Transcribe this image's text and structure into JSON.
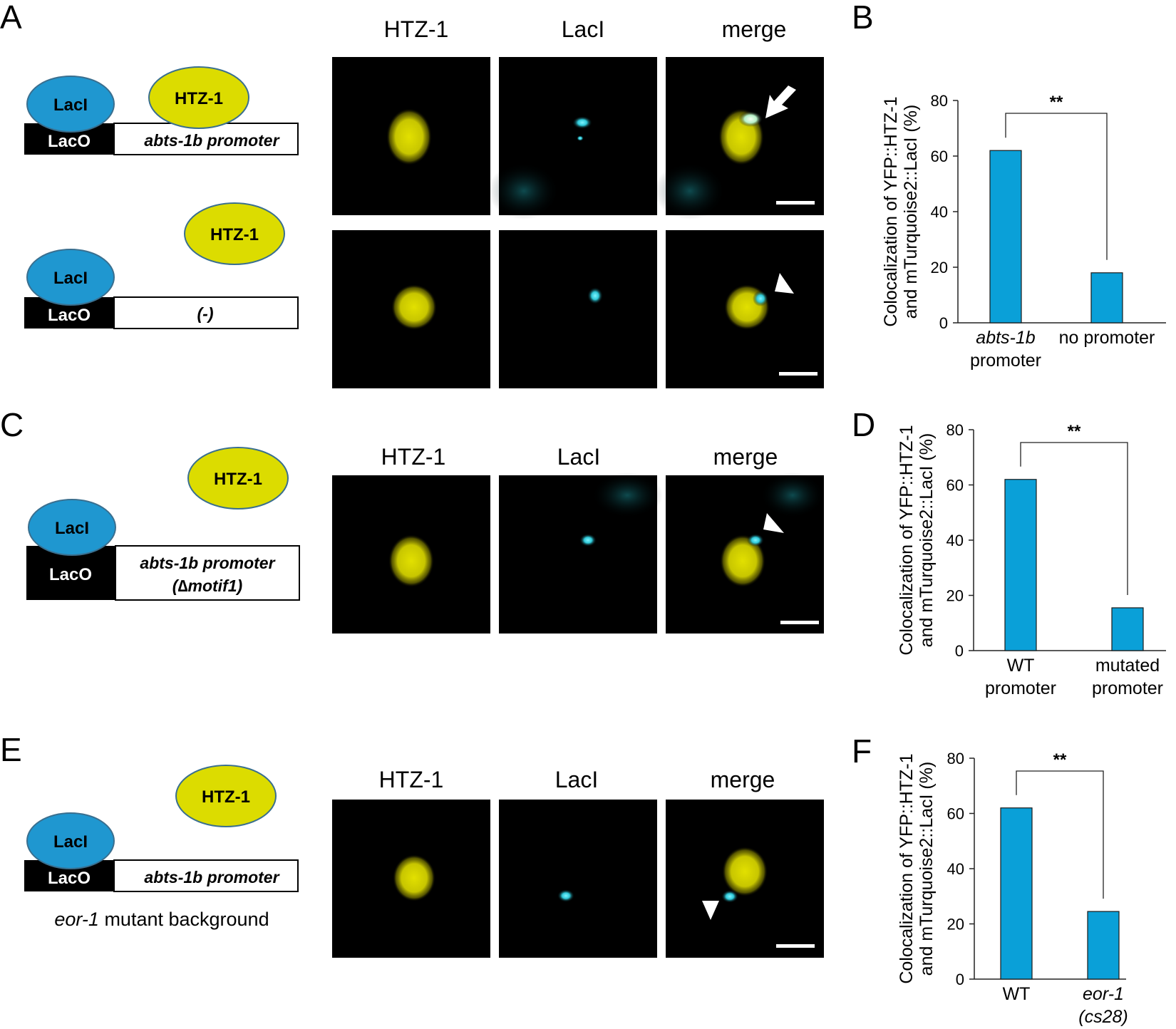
{
  "panel_letters": [
    "A",
    "B",
    "C",
    "D",
    "E",
    "F"
  ],
  "colors": {
    "laci_fill": "#1f97d0",
    "htz_fill": "#dcdc00",
    "ellipse_stroke": "#3a6f8f",
    "laco_fill": "#000000",
    "bar_fill": "#0aa0d8",
    "yfp_signal": "#d6d400",
    "turquoise_signal": "#2ec8d8",
    "micrograph_bg": "#000000"
  },
  "diagram": {
    "laci_label": "LacI",
    "laco_label": "LacO",
    "htz_label": "HTZ-1",
    "promoter_abts": "abts-1b promoter",
    "promoter_none": "(-)",
    "promoter_mutated_line1": "abts-1b promoter",
    "promoter_mutated_line2": "(∆motif1)",
    "background_italic": "eor-1",
    "background_rest": " mutant background"
  },
  "micrographs": {
    "column_headers": [
      "HTZ-1",
      "LacI",
      "merge"
    ],
    "markers": [
      "arrow",
      "arrowhead",
      "arrowhead",
      "arrowhead"
    ],
    "has_scale_bar": true
  },
  "chart_data": [
    {
      "panel": "B",
      "type": "bar",
      "categories": [
        "abts-1b promoter",
        "no promoter"
      ],
      "category_lines": [
        [
          "abts-1b",
          "promoter"
        ],
        [
          "no promoter"
        ]
      ],
      "category_italic_first_line": [
        true,
        false
      ],
      "values": [
        62,
        18
      ],
      "ylabel_line1": "Colocalization of YFP::HTZ-1",
      "ylabel_line2": "and mTurquoise2::LacI (%)",
      "ylim": [
        0,
        80
      ],
      "yticks": [
        0,
        20,
        40,
        60,
        80
      ],
      "significance": "**"
    },
    {
      "panel": "D",
      "type": "bar",
      "categories": [
        "WT promoter",
        "mutated promoter"
      ],
      "category_lines": [
        [
          "WT",
          "promoter"
        ],
        [
          "mutated",
          "promoter"
        ]
      ],
      "category_italic_first_line": [
        false,
        false
      ],
      "values": [
        62,
        15.5
      ],
      "ylabel_line1": "Colocalization of YFP::HTZ-1",
      "ylabel_line2": "and mTurquoise2::LacI (%)",
      "ylim": [
        0,
        80
      ],
      "yticks": [
        0,
        20,
        40,
        60,
        80
      ],
      "significance": "**"
    },
    {
      "panel": "F",
      "type": "bar",
      "categories": [
        "WT",
        "eor-1 (cs28)"
      ],
      "category_lines": [
        [
          "WT"
        ],
        [
          "eor-1",
          "(cs28)"
        ]
      ],
      "category_italic_first_line": [
        false,
        true
      ],
      "category_italic_all": [
        false,
        true
      ],
      "values": [
        62,
        24.5
      ],
      "ylabel_line1": "Colocalization of YFP::HTZ-1",
      "ylabel_line2": "and mTurquoise2::LacI (%)",
      "ylim": [
        0,
        80
      ],
      "yticks": [
        0,
        20,
        40,
        60,
        80
      ],
      "significance": "**"
    }
  ]
}
